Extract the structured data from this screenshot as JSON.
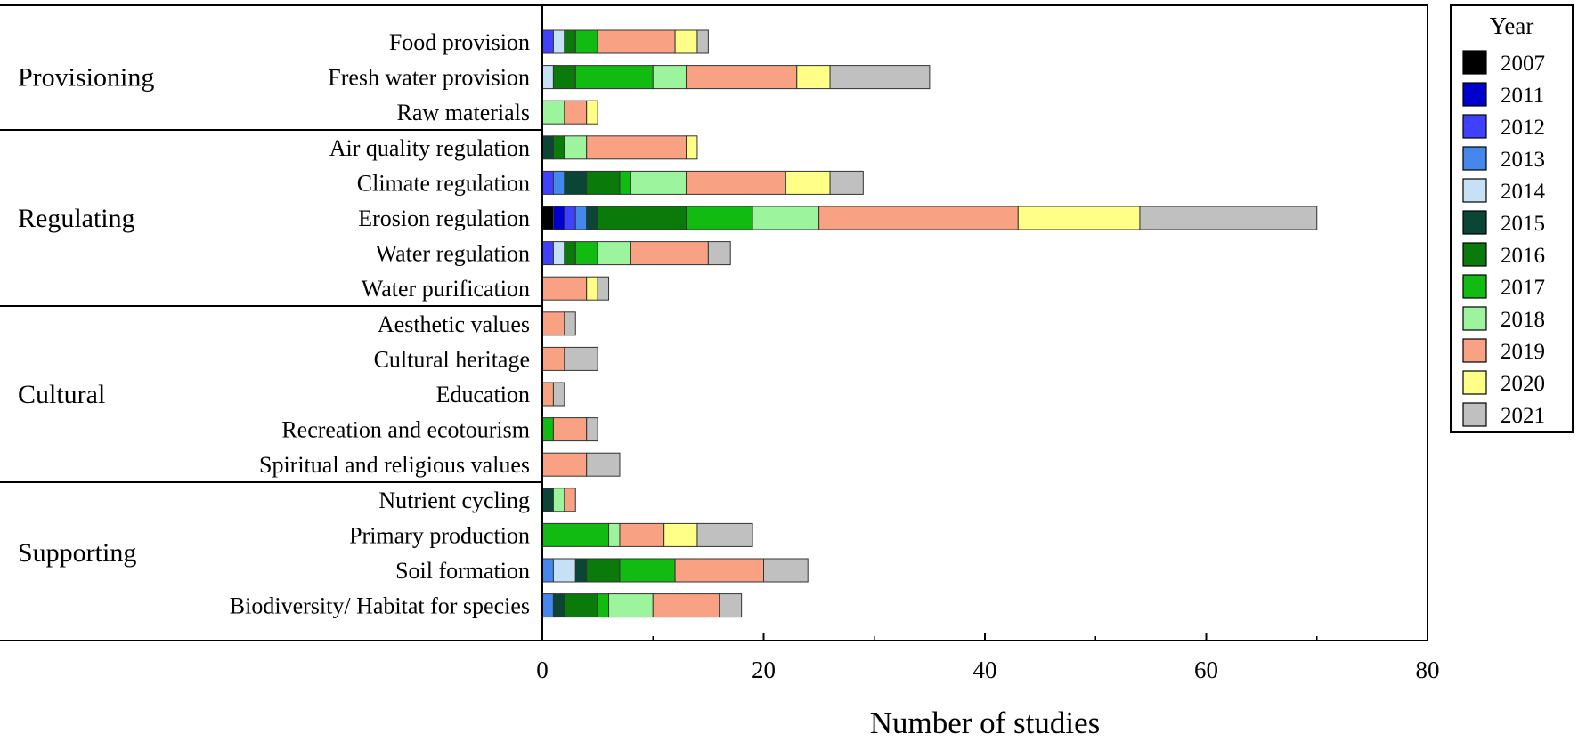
{
  "chart_data": {
    "type": "bar",
    "orientation": "horizontal",
    "stacked": true,
    "xlabel": "Number of studies",
    "ylabel": "",
    "xlim": [
      0,
      80
    ],
    "xticks": [
      0,
      20,
      40,
      60,
      80
    ],
    "grid": false,
    "legend_title": "Year",
    "legend_position": "right",
    "groups": [
      {
        "name": "Provisioning",
        "items": [
          "Food provision",
          "Fresh water provision",
          "Raw materials"
        ]
      },
      {
        "name": "Regulating",
        "items": [
          "Air quality regulation",
          "Climate regulation",
          "Erosion regulation",
          "Water regulation",
          "Water purification"
        ]
      },
      {
        "name": "Cultural",
        "items": [
          "Aesthetic values",
          "Cultural heritage",
          "Education",
          "Recreation and ecotourism",
          "Spiritual and religious values"
        ]
      },
      {
        "name": "Supporting",
        "items": [
          "Nutrient cycling",
          "Primary production",
          "Soil formation",
          "Biodiversity/ Habitat for species"
        ]
      }
    ],
    "categories": [
      "Food provision",
      "Fresh water provision",
      "Raw materials",
      "Air quality regulation",
      "Climate regulation",
      "Erosion regulation",
      "Water regulation",
      "Water purification",
      "Aesthetic values",
      "Cultural heritage",
      "Education",
      "Recreation and ecotourism",
      "Spiritual and religious values",
      "Nutrient cycling",
      "Primary production",
      "Soil formation",
      "Biodiversity/ Habitat for species"
    ],
    "series": [
      {
        "name": "2007",
        "color": "#000000",
        "values": [
          0,
          0,
          0,
          0,
          0,
          1,
          0,
          0,
          0,
          0,
          0,
          0,
          0,
          0,
          0,
          0,
          0
        ]
      },
      {
        "name": "2011",
        "color": "#0000cc",
        "values": [
          0,
          0,
          0,
          0,
          0,
          1,
          0,
          0,
          0,
          0,
          0,
          0,
          0,
          0,
          0,
          0,
          0
        ]
      },
      {
        "name": "2012",
        "color": "#4040ff",
        "values": [
          1,
          0,
          0,
          0,
          1,
          1,
          1,
          0,
          0,
          0,
          0,
          0,
          0,
          0,
          0,
          0,
          0
        ]
      },
      {
        "name": "2013",
        "color": "#4488ee",
        "values": [
          0,
          0,
          0,
          0,
          1,
          1,
          0,
          0,
          0,
          0,
          0,
          0,
          0,
          0,
          0,
          1,
          1
        ]
      },
      {
        "name": "2014",
        "color": "#c6e0f5",
        "values": [
          1,
          1,
          0,
          0,
          0,
          0,
          1,
          0,
          0,
          0,
          0,
          0,
          0,
          0,
          0,
          2,
          0
        ]
      },
      {
        "name": "2015",
        "color": "#0b4536",
        "values": [
          0,
          0,
          0,
          1,
          2,
          1,
          0,
          0,
          0,
          0,
          0,
          0,
          0,
          1,
          0,
          1,
          1
        ]
      },
      {
        "name": "2016",
        "color": "#0a7a0a",
        "values": [
          1,
          2,
          0,
          1,
          3,
          8,
          1,
          0,
          0,
          0,
          0,
          0,
          0,
          0,
          0,
          3,
          3
        ]
      },
      {
        "name": "2017",
        "color": "#11bb11",
        "values": [
          2,
          7,
          0,
          0,
          1,
          6,
          2,
          0,
          0,
          0,
          0,
          1,
          0,
          0,
          6,
          5,
          1
        ]
      },
      {
        "name": "2018",
        "color": "#9cf59c",
        "values": [
          0,
          3,
          2,
          2,
          5,
          6,
          3,
          0,
          0,
          0,
          0,
          0,
          0,
          1,
          1,
          0,
          4
        ]
      },
      {
        "name": "2019",
        "color": "#f9a283",
        "values": [
          7,
          10,
          2,
          9,
          9,
          18,
          7,
          4,
          2,
          2,
          1,
          3,
          4,
          1,
          4,
          8,
          6
        ]
      },
      {
        "name": "2020",
        "color": "#ffff88",
        "values": [
          2,
          3,
          1,
          1,
          4,
          11,
          0,
          1,
          0,
          0,
          0,
          0,
          0,
          0,
          3,
          0,
          0
        ]
      },
      {
        "name": "2021",
        "color": "#c0c0c0",
        "values": [
          1,
          9,
          0,
          0,
          3,
          16,
          2,
          1,
          1,
          3,
          1,
          1,
          3,
          0,
          5,
          4,
          2
        ]
      }
    ]
  }
}
